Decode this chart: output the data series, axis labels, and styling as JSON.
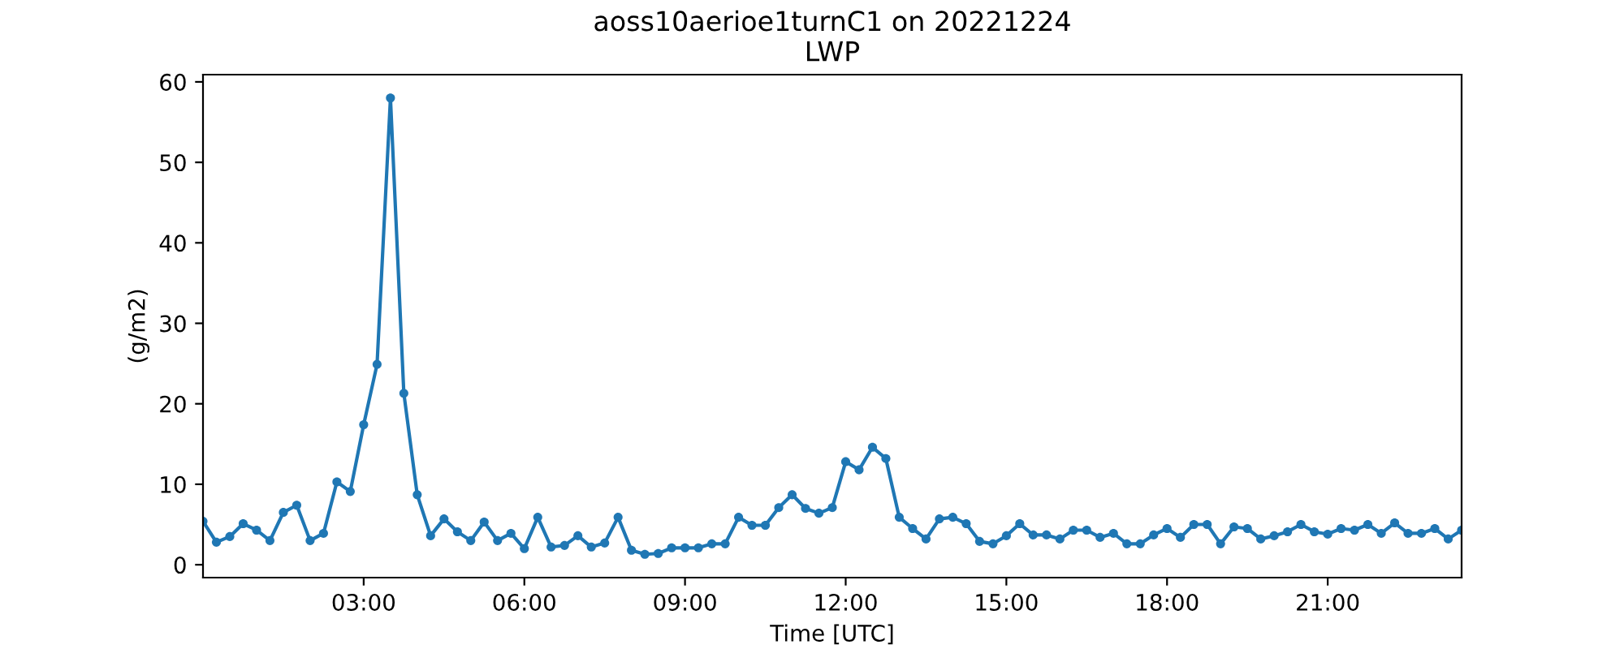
{
  "chart_data": {
    "type": "line",
    "title": "aoss10aerioe1turnC1 on 20221224",
    "subtitle": "LWP",
    "xlabel": "Time [UTC]",
    "ylabel": "(g/m2)",
    "x": [
      0,
      0.25,
      0.5,
      0.75,
      1,
      1.25,
      1.5,
      1.75,
      2,
      2.25,
      2.5,
      2.75,
      3,
      3.25,
      3.5,
      3.75,
      4,
      4.25,
      4.5,
      4.75,
      5,
      5.25,
      5.5,
      5.75,
      6,
      6.25,
      6.5,
      6.75,
      7,
      7.25,
      7.5,
      7.75,
      8,
      8.25,
      8.5,
      8.75,
      9,
      9.25,
      9.5,
      9.75,
      10,
      10.25,
      10.5,
      10.75,
      11,
      11.25,
      11.5,
      11.75,
      12,
      12.25,
      12.5,
      12.75,
      13,
      13.25,
      13.5,
      13.75,
      14,
      14.25,
      14.5,
      14.75,
      15,
      15.25,
      15.5,
      15.75,
      16,
      16.25,
      16.5,
      16.75,
      17,
      17.25,
      17.5,
      17.75,
      18,
      18.25,
      18.5,
      18.75,
      19,
      19.25,
      19.5,
      19.75,
      20,
      20.25,
      20.5,
      20.75,
      21,
      21.25,
      21.5,
      21.75,
      22,
      22.25,
      22.5,
      22.75,
      23,
      23.25,
      23.5
    ],
    "series": [
      {
        "color": "#1f77b4",
        "values": [
          5.4,
          2.8,
          3.5,
          5.1,
          4.3,
          3.0,
          6.5,
          7.4,
          3.0,
          3.9,
          10.3,
          9.1,
          17.4,
          24.9,
          58.0,
          21.3,
          8.7,
          3.6,
          5.7,
          4.1,
          3.0,
          5.3,
          3.0,
          3.9,
          2.0,
          5.9,
          2.2,
          2.4,
          3.6,
          2.2,
          2.7,
          5.9,
          1.8,
          1.3,
          1.4,
          2.1,
          2.1,
          2.1,
          2.6,
          2.6,
          5.9,
          4.9,
          4.9,
          7.1,
          8.7,
          7.0,
          6.4,
          7.1,
          12.8,
          11.8,
          14.6,
          13.2,
          5.9,
          4.5,
          3.2,
          5.7,
          5.9,
          5.1,
          2.9,
          2.6,
          3.6,
          5.1,
          3.7,
          3.7,
          3.2,
          4.3,
          4.3,
          3.4,
          3.9,
          2.6,
          2.6,
          3.7,
          4.5,
          3.4,
          5.0,
          5.0,
          2.6,
          4.7,
          4.5,
          3.2,
          3.6,
          4.1,
          5.0,
          4.1,
          3.8,
          4.5,
          4.3,
          5.0,
          3.9,
          5.2,
          3.9,
          3.9,
          4.5,
          3.2,
          4.3
        ]
      }
    ],
    "xlim": [
      0,
      23.5
    ],
    "xticks": [
      {
        "value": 3,
        "label": "03:00"
      },
      {
        "value": 6,
        "label": "06:00"
      },
      {
        "value": 9,
        "label": "09:00"
      },
      {
        "value": 12,
        "label": "12:00"
      },
      {
        "value": 15,
        "label": "15:00"
      },
      {
        "value": 18,
        "label": "18:00"
      },
      {
        "value": 21,
        "label": "21:00"
      }
    ],
    "ylim": [
      -1.6,
      60.9
    ],
    "yticks": [
      0,
      10,
      20,
      30,
      40,
      50,
      60
    ],
    "marker": "circle",
    "line_style": "solid",
    "grid": false
  }
}
